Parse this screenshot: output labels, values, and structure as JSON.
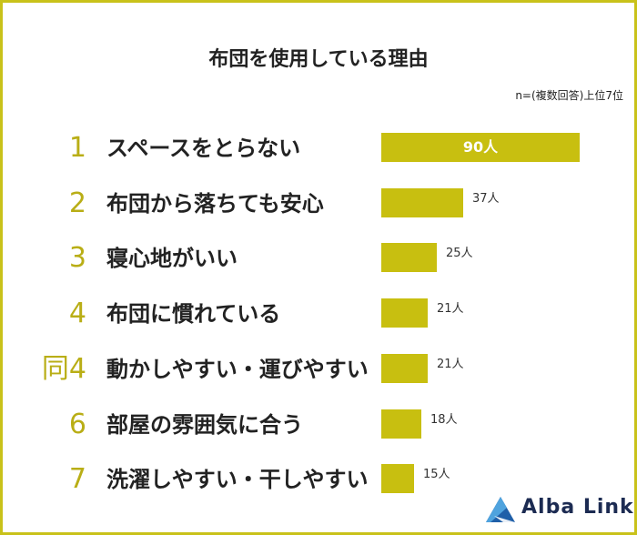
{
  "title": "布団を使用している理由",
  "note": "n=(複数回答)上位7位",
  "brand": "Alba Link",
  "colors": {
    "bar": "#c8bf10",
    "rank": "#b9ae16",
    "border": "#c9c21a",
    "brand": "#1c2b52"
  },
  "chart_data": {
    "type": "bar",
    "orientation": "horizontal",
    "title": "布団を使用している理由",
    "subtitle": "n=(複数回答)上位7位",
    "ranks": [
      "1",
      "2",
      "3",
      "4",
      "同4",
      "6",
      "7"
    ],
    "categories": [
      "スペースをとらない",
      "布団から落ちても安心",
      "寝心地がいい",
      "布団に慣れている",
      "動かしやすい・運びやすい",
      "部屋の雰囲気に合う",
      "洗濯しやすい・干しやすい"
    ],
    "values": [
      90,
      37,
      25,
      21,
      21,
      18,
      15
    ],
    "value_labels": [
      "90人",
      "37人",
      "25人",
      "21人",
      "21人",
      "18人",
      "15人"
    ],
    "unit": "人",
    "xlim": [
      0,
      90
    ]
  }
}
